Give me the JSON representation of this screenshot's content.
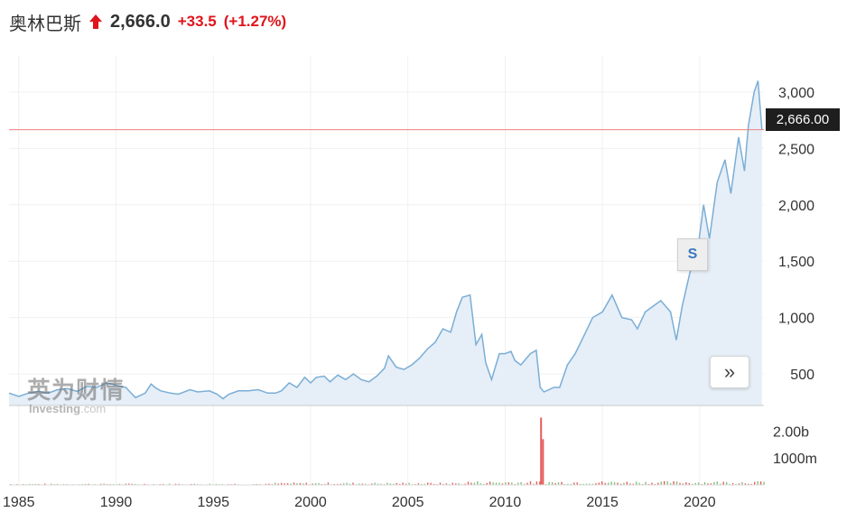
{
  "header": {
    "name": "奥林巴斯",
    "price": "2,666.0",
    "change": "+33.5",
    "change_pct": "(+1.27%)",
    "direction": "up",
    "up_color": "#e0141b"
  },
  "last_value_label": "2,666.00",
  "event_marker": "S",
  "nav_icon": "double-chevron-right-icon",
  "watermark": {
    "cn": "英为财情",
    "en": "Investing",
    "domain": ".com"
  },
  "chart_data": [
    {
      "type": "area",
      "series": [
        {
          "values": [
            [
              1984.5,
              330
            ],
            [
              1985.0,
              300
            ],
            [
              1985.5,
              330
            ],
            [
              1986.0,
              345
            ],
            [
              1986.5,
              330
            ],
            [
              1987.0,
              360
            ],
            [
              1987.5,
              370
            ],
            [
              1988.0,
              345
            ],
            [
              1988.5,
              390
            ],
            [
              1989.0,
              380
            ],
            [
              1989.5,
              420
            ],
            [
              1990.0,
              400
            ],
            [
              1990.5,
              380
            ],
            [
              1991.0,
              290
            ],
            [
              1991.5,
              330
            ],
            [
              1991.8,
              410
            ],
            [
              1992.0,
              380
            ],
            [
              1992.3,
              350
            ],
            [
              1992.8,
              330
            ],
            [
              1993.2,
              320
            ],
            [
              1993.8,
              360
            ],
            [
              1994.2,
              340
            ],
            [
              1994.8,
              350
            ],
            [
              1995.2,
              320
            ],
            [
              1995.5,
              280
            ],
            [
              1995.8,
              320
            ],
            [
              1996.3,
              350
            ],
            [
              1996.8,
              350
            ],
            [
              1997.3,
              360
            ],
            [
              1997.8,
              330
            ],
            [
              1998.2,
              330
            ],
            [
              1998.5,
              350
            ],
            [
              1998.9,
              420
            ],
            [
              1999.3,
              380
            ],
            [
              1999.7,
              470
            ],
            [
              2000.0,
              420
            ],
            [
              2000.3,
              470
            ],
            [
              2000.7,
              480
            ],
            [
              2001.0,
              430
            ],
            [
              2001.4,
              490
            ],
            [
              2001.8,
              450
            ],
            [
              2002.2,
              500
            ],
            [
              2002.6,
              450
            ],
            [
              2003.0,
              430
            ],
            [
              2003.4,
              480
            ],
            [
              2003.8,
              550
            ],
            [
              2004.0,
              660
            ],
            [
              2004.4,
              560
            ],
            [
              2004.8,
              540
            ],
            [
              2005.2,
              580
            ],
            [
              2005.6,
              640
            ],
            [
              2006.0,
              720
            ],
            [
              2006.4,
              780
            ],
            [
              2006.8,
              900
            ],
            [
              2007.2,
              870
            ],
            [
              2007.5,
              1050
            ],
            [
              2007.8,
              1180
            ],
            [
              2008.2,
              1200
            ],
            [
              2008.5,
              760
            ],
            [
              2008.8,
              850
            ],
            [
              2009.0,
              600
            ],
            [
              2009.3,
              450
            ],
            [
              2009.7,
              680
            ],
            [
              2010.0,
              680
            ],
            [
              2010.3,
              700
            ],
            [
              2010.5,
              620
            ],
            [
              2010.8,
              580
            ],
            [
              2011.0,
              620
            ],
            [
              2011.3,
              680
            ],
            [
              2011.6,
              710
            ],
            [
              2011.8,
              380
            ],
            [
              2012.0,
              340
            ],
            [
              2012.5,
              380
            ],
            [
              2012.8,
              380
            ],
            [
              2013.2,
              580
            ],
            [
              2013.6,
              680
            ],
            [
              2014.0,
              820
            ],
            [
              2014.5,
              1000
            ],
            [
              2015.0,
              1050
            ],
            [
              2015.5,
              1200
            ],
            [
              2016.0,
              1000
            ],
            [
              2016.5,
              980
            ],
            [
              2016.8,
              900
            ],
            [
              2017.2,
              1050
            ],
            [
              2017.6,
              1100
            ],
            [
              2018.0,
              1150
            ],
            [
              2018.5,
              1050
            ],
            [
              2018.8,
              800
            ],
            [
              2019.1,
              1100
            ],
            [
              2019.5,
              1400
            ],
            [
              2019.9,
              1600
            ],
            [
              2020.2,
              2000
            ],
            [
              2020.5,
              1700
            ],
            [
              2020.9,
              2200
            ],
            [
              2021.3,
              2400
            ],
            [
              2021.6,
              2100
            ],
            [
              2022.0,
              2600
            ],
            [
              2022.3,
              2300
            ],
            [
              2022.5,
              2700
            ],
            [
              2022.8,
              3000
            ],
            [
              2023.0,
              3100
            ],
            [
              2023.2,
              2666
            ]
          ]
        }
      ],
      "xlim": [
        1984.5,
        2023.3
      ],
      "ylim": [
        220,
        3320
      ],
      "y_ticks": [
        "3,000",
        "2,500",
        "2,000",
        "1,500",
        "1,000",
        "500"
      ],
      "y_tick_values": [
        3000,
        2500,
        2000,
        1500,
        1000,
        500
      ],
      "x_ticks": [
        "1985",
        "1990",
        "1995",
        "2000",
        "2005",
        "2010",
        "2015",
        "2020"
      ],
      "x_tick_values": [
        1985,
        1990,
        1995,
        2000,
        2005,
        2010,
        2015,
        2020
      ],
      "last_value": 2666.0,
      "line_color": "#7aaed6",
      "fill_color": "#e6eef7",
      "last_line_color": "#f08080",
      "grid": true
    },
    {
      "type": "bar",
      "volume_ticks": [
        "2.00b",
        "1000m"
      ],
      "volume_tick_values": [
        2.0,
        1.0
      ],
      "up_color": "#e55b5b",
      "down_color": "#7dc07d",
      "spike": {
        "x": [
          2011.8,
          2011.9
        ],
        "values": [
          2.5,
          1.7
        ]
      }
    }
  ]
}
